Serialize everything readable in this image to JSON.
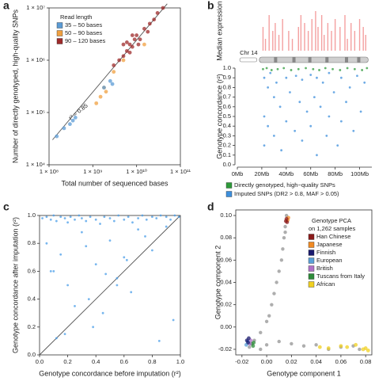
{
  "chart_data": [
    {
      "type": "scatter",
      "panel_label": "a",
      "xlabel": "Total number of sequenced bases",
      "ylabel": "Number of directly genotyped, high-quality SNPs",
      "xscale": "log",
      "yscale": "log",
      "xlim": [
        100000000,
        100000000000
      ],
      "ylim": [
        10000,
        10000000
      ],
      "xticks": [
        {
          "value": 100000000,
          "label": "1 × 10⁸"
        },
        {
          "value": 1000000000,
          "label": "1 × 10⁹"
        },
        {
          "value": 10000000000,
          "label": "1 × 10¹⁰"
        },
        {
          "value": 100000000000,
          "label": "1 × 10¹¹"
        }
      ],
      "yticks": [
        {
          "value": 10000,
          "label": "1 × 10⁴"
        },
        {
          "value": 100000,
          "label": "1 × 10⁵"
        },
        {
          "value": 1000000,
          "label": "1 × 10⁶"
        },
        {
          "value": 10000000,
          "label": "1 × 10⁷"
        }
      ],
      "legend": "upper left",
      "legend_title": "Read length",
      "annotation": "r² = 0.85",
      "line": {
        "x": [
          120000000,
          50000000000
        ],
        "y": [
          30000,
          12000000
        ],
        "color": "#555555"
      },
      "series": [
        {
          "name": "35 – 50 bases",
          "color": "#5b9bd5",
          "x": [
            150000000,
            220000000,
            300000000,
            350000000,
            400000000,
            1800000000,
            2500000000,
            2800000000
          ],
          "values": [
            35000,
            50000,
            60000,
            70000,
            80000,
            300000,
            400000,
            350000
          ]
        },
        {
          "name": "50 – 90 bases",
          "color": "#f0a040",
          "x": [
            1200000000,
            1500000000,
            1800000000,
            2000000000,
            3000000000,
            5000000000,
            15000000000
          ],
          "values": [
            150000,
            200000,
            300000,
            250000,
            600000,
            1000000,
            2000000
          ]
        },
        {
          "name": "90 – 120 bases",
          "color": "#9e2a2a",
          "x": [
            3000000000,
            4000000000,
            5000000000,
            6000000000,
            7000000000,
            8000000000,
            9000000000,
            10000000000,
            12000000000,
            15000000000,
            18000000000,
            20000000000,
            25000000000,
            30000000000,
            40000000000,
            6000000000,
            7000000000,
            11000000000,
            5000000000,
            8000000000
          ],
          "values": [
            800000,
            1000000,
            1200000,
            1500000,
            2000000,
            1800000,
            2500000,
            3000000,
            2500000,
            4000000,
            3500000,
            5000000,
            6000000,
            8000000,
            10000000,
            2200000,
            1400000,
            2000000,
            2000000,
            3000000
          ]
        }
      ]
    },
    {
      "type": "bar",
      "panel_label": "b",
      "ylabel": "Median expression",
      "chromosome_label": "Chr 14",
      "color": "#f4a0a0",
      "xlim": [
        0,
        110
      ],
      "ylim": [
        0,
        1
      ],
      "x": [
        21,
        23,
        26,
        29,
        31,
        34,
        37,
        42,
        45,
        50,
        52,
        55,
        58,
        61,
        64,
        66,
        69,
        71,
        74,
        77,
        80,
        84,
        88,
        90,
        93,
        96,
        100,
        103,
        105
      ],
      "values": [
        0.6,
        0.3,
        0.9,
        0.5,
        0.7,
        0.4,
        0.8,
        0.5,
        0.3,
        0.6,
        0.9,
        0.7,
        0.5,
        0.8,
        1.0,
        0.6,
        0.9,
        0.4,
        0.7,
        0.5,
        0.8,
        0.6,
        0.9,
        0.3,
        0.7,
        0.5,
        0.8,
        0.6,
        0.4
      ]
    },
    {
      "type": "scatter",
      "ylabel": "Genotype concordance (r²)",
      "xlim": [
        0,
        110
      ],
      "ylim": [
        0,
        1
      ],
      "xticks": [
        {
          "value": 0,
          "label": "0Mb"
        },
        {
          "value": 20,
          "label": "20Mb"
        },
        {
          "value": 40,
          "label": "40Mb"
        },
        {
          "value": 60,
          "label": "60Mb"
        },
        {
          "value": 80,
          "label": "80Mb"
        },
        {
          "value": 100,
          "label": "100Mb"
        }
      ],
      "yticks": [
        {
          "value": 0,
          "label": "0.0"
        },
        0.1,
        0.2,
        0.3,
        0.4,
        0.5,
        0.6,
        0.7,
        0.8,
        0.9,
        {
          "value": 1,
          "label": "1.0"
        }
      ],
      "legend": "below",
      "series": [
        {
          "name": "Directly genotyped, high−quality SNPs",
          "color": "#2e9a3a",
          "x": [
            21,
            24,
            28,
            33,
            38,
            44,
            50,
            56,
            62,
            67,
            72,
            78,
            84,
            90,
            96,
            102,
            106
          ],
          "values": [
            0.99,
            1.0,
            0.98,
            0.99,
            1.0,
            0.98,
            0.99,
            1.0,
            0.99,
            0.98,
            1.0,
            0.99,
            0.98,
            1.0,
            0.99,
            0.98,
            1.0
          ]
        },
        {
          "name": "Imputed SNPs (DR2 > 0.8, MAF > 0.05)",
          "color": "#3d8fdc",
          "x": [
            22,
            22,
            22,
            25,
            25,
            27,
            30,
            30,
            32,
            35,
            36,
            40,
            40,
            43,
            47,
            48,
            51,
            53,
            53,
            57,
            60,
            60,
            63,
            65,
            65,
            68,
            70,
            73,
            75,
            75,
            79,
            82,
            85,
            85,
            89,
            92,
            95,
            98,
            101,
            104
          ],
          "values": [
            0.9,
            0.5,
            0.2,
            0.8,
            0.4,
            0.95,
            0.7,
            0.3,
            0.85,
            0.6,
            0.15,
            0.9,
            0.45,
            0.75,
            0.35,
            0.92,
            0.65,
            0.88,
            0.25,
            0.55,
            0.93,
            0.4,
            0.7,
            0.9,
            0.1,
            0.6,
            0.85,
            0.3,
            0.95,
            0.5,
            0.75,
            0.2,
            0.9,
            0.45,
            0.65,
            0.8,
            0.35,
            0.92,
            0.55,
            0.85
          ]
        }
      ]
    },
    {
      "type": "scatter",
      "panel_label": "c",
      "xlabel": "Genotype concordance before imputation (r²)",
      "ylabel": "Genotype concordance after imputation (r²)",
      "xlim": [
        0,
        1
      ],
      "ylim": [
        0,
        1
      ],
      "xticks": [
        {
          "value": 0,
          "label": "0.0"
        },
        0.2,
        0.4,
        0.6,
        0.8,
        {
          "value": 1,
          "label": "1.0"
        }
      ],
      "yticks": [
        {
          "value": 0,
          "label": "0.0"
        },
        0.2,
        0.4,
        0.6,
        0.8,
        {
          "value": 1,
          "label": "1.0"
        }
      ],
      "line": {
        "x": [
          0,
          1
        ],
        "y": [
          0,
          1
        ],
        "color": "#555555"
      },
      "series": [
        {
          "color": "#4a9de8",
          "x": [
            0.02,
            0.05,
            0.08,
            0.1,
            0.12,
            0.15,
            0.18,
            0.2,
            0.22,
            0.25,
            0.28,
            0.3,
            0.33,
            0.36,
            0.4,
            0.43,
            0.46,
            0.5,
            0.53,
            0.56,
            0.6,
            0.63,
            0.66,
            0.7,
            0.73,
            0.76,
            0.8,
            0.83,
            0.86,
            0.9,
            0.93,
            0.96,
            0.99,
            0.05,
            0.1,
            0.15,
            0.2,
            0.3,
            0.35,
            0.4,
            0.45,
            0.5,
            0.55,
            0.6,
            0.65,
            0.7,
            0.8,
            0.9,
            0.25,
            0.38,
            0.12,
            0.62,
            0.75,
            0.47,
            0.85,
            0.08,
            0.95,
            0.33,
            0.18,
            0.55
          ],
          "values": [
            0.98,
            0.99,
            0.97,
            1.0,
            0.96,
            0.99,
            0.98,
            0.95,
            0.99,
            0.97,
            1.0,
            0.98,
            0.96,
            0.99,
            0.97,
            0.94,
            0.99,
            0.98,
            0.96,
            1.0,
            0.97,
            0.99,
            0.95,
            0.98,
            1.0,
            0.97,
            0.99,
            0.98,
            1.0,
            0.99,
            0.97,
            1.0,
            0.99,
            0.8,
            0.6,
            0.72,
            0.5,
            0.88,
            0.4,
            0.65,
            0.3,
            0.82,
            0.55,
            0.7,
            0.45,
            0.9,
            0.75,
            0.92,
            0.35,
            0.2,
            0.12,
            0.68,
            0.85,
            0.58,
            0.1,
            0.6,
            0.25,
            0.78,
            0.15,
            0.5
          ]
        }
      ]
    },
    {
      "type": "scatter",
      "panel_label": "d",
      "xlabel": "Genotype component 1",
      "ylabel": "Genotype component 2",
      "xlim": [
        -0.025,
        0.085
      ],
      "ylim": [
        -0.025,
        0.105
      ],
      "xticks": [
        -0.02,
        {
          "value": 0,
          "label": "0.00"
        },
        0.02,
        0.04,
        0.06,
        0.08
      ],
      "yticks": [
        -0.02,
        {
          "value": 0,
          "label": "0.00"
        },
        0.02,
        0.04,
        0.06,
        0.08,
        {
          "value": 0.1,
          "label": "0.10"
        }
      ],
      "legend": "upper right",
      "legend_title": "Genotype PCA",
      "legend_subtitle": "on 1,262 samples",
      "background_points": {
        "color": "#9a9a9a",
        "x": [
          0.015,
          0.014,
          0.013,
          0.012,
          0.01,
          0.008,
          0.006,
          0.004,
          0.002,
          0,
          -0.005,
          -0.01,
          -0.014,
          -0.005,
          0.0,
          0.01,
          0.02,
          0.03,
          0.04,
          0.05,
          0.06,
          0.07,
          0.075,
          0.016,
          0.015
        ],
        "values": [
          0.09,
          0.08,
          0.07,
          0.06,
          0.05,
          0.04,
          0.03,
          0.02,
          0.01,
          0.005,
          -0.005,
          -0.012,
          -0.018,
          -0.02,
          -0.016,
          -0.013,
          -0.015,
          -0.017,
          -0.016,
          -0.02,
          -0.018,
          -0.017,
          -0.02,
          0.1,
          0.085
        ]
      },
      "series": [
        {
          "name": "Han Chinese",
          "color": "#8b1a1a",
          "x": [
            0.0155,
            0.016,
            0.0165
          ],
          "values": [
            0.095,
            0.097,
            0.094
          ]
        },
        {
          "name": "Japanese",
          "color": "#f08a24",
          "x": [
            0.017,
            0.0175
          ],
          "values": [
            0.096,
            0.098
          ]
        },
        {
          "name": "Finnish",
          "color": "#1a1a6e",
          "x": [
            -0.016,
            -0.015,
            -0.0145
          ],
          "values": [
            -0.012,
            -0.014,
            -0.01
          ]
        },
        {
          "name": "European",
          "color": "#5aa0d8",
          "x": [
            -0.0165,
            -0.0155
          ],
          "values": [
            -0.016,
            -0.013
          ]
        },
        {
          "name": "British",
          "color": "#b070c8",
          "x": [
            -0.0135,
            -0.013
          ],
          "values": [
            -0.015,
            -0.012
          ]
        },
        {
          "name": "Tuscans from Italy",
          "color": "#2e8b3a",
          "x": [
            -0.012,
            -0.011,
            -0.0105
          ],
          "values": [
            -0.015,
            -0.017,
            -0.014
          ]
        },
        {
          "name": "African",
          "color": "#f0d020",
          "x": [
            0.043,
            0.05,
            0.06,
            0.065,
            0.072,
            0.078,
            0.08,
            0.082
          ],
          "values": [
            -0.018,
            -0.019,
            -0.017,
            -0.018,
            -0.016,
            -0.02,
            -0.019,
            -0.021
          ]
        }
      ]
    }
  ]
}
